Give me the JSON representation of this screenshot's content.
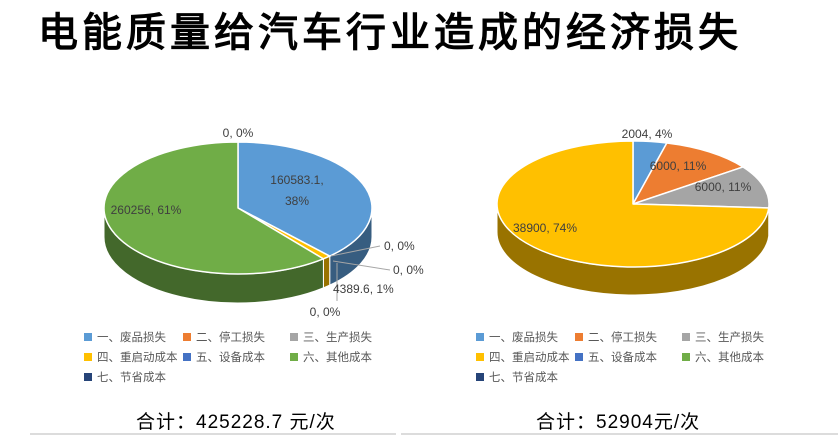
{
  "title": "电能质量给汽车行业造成的经济损失",
  "legend_items": [
    {
      "label": "一、废品损失",
      "color": "#5B9BD5"
    },
    {
      "label": "二、停工损失",
      "color": "#ED7D31"
    },
    {
      "label": "三、生产损失",
      "color": "#A5A5A5"
    },
    {
      "label": "四、重启动成本",
      "color": "#FFC000"
    },
    {
      "label": "五、设备成本",
      "color": "#4472C4"
    },
    {
      "label": "六、其他成本",
      "color": "#70AD47"
    },
    {
      "label": "七、节省成本",
      "color": "#264478"
    }
  ],
  "chart_data": [
    {
      "type": "pie",
      "position": "left",
      "categories": [
        "一、废品损失",
        "二、停工损失",
        "三、生产损失",
        "四、重启动成本",
        "五、设备成本",
        "六、其他成本",
        "七、节省成本"
      ],
      "values": [
        160583.1,
        0,
        0,
        4389.6,
        0,
        260256,
        0
      ],
      "percents": [
        38,
        0,
        0,
        1,
        0,
        61,
        0
      ],
      "slice_labels": [
        "160583.1, 38%",
        "0, 0%",
        "0, 0%",
        "4389.6, 1%",
        "0, 0%",
        "260256, 61%",
        "0, 0%"
      ],
      "colors": [
        "#5B9BD5",
        "#ED7D31",
        "#A5A5A5",
        "#FFC000",
        "#4472C4",
        "#70AD47",
        "#264478"
      ],
      "legend_position": "bottom",
      "total_text": "合计：425228.7 元/次",
      "total_value": 425228.7,
      "unit": "元/次"
    },
    {
      "type": "pie",
      "position": "right",
      "categories": [
        "一、废品损失",
        "二、停工损失",
        "三、生产损失",
        "四、重启动成本",
        "五、设备成本",
        "六、其他成本",
        "七、节省成本"
      ],
      "values": [
        2004,
        6000,
        6000,
        38900,
        0,
        0,
        0
      ],
      "percents": [
        4,
        11,
        11,
        74,
        0,
        0,
        0
      ],
      "slice_labels": [
        "2004, 4%",
        "6000, 11%",
        "6000, 11%",
        "38900, 74%",
        "",
        "",
        ""
      ],
      "colors": [
        "#5B9BD5",
        "#ED7D31",
        "#A5A5A5",
        "#FFC000",
        "#4472C4",
        "#70AD47",
        "#264478"
      ],
      "legend_position": "bottom",
      "total_text": "合计：52904元/次",
      "total_value": 52904,
      "unit": "元/次"
    }
  ]
}
